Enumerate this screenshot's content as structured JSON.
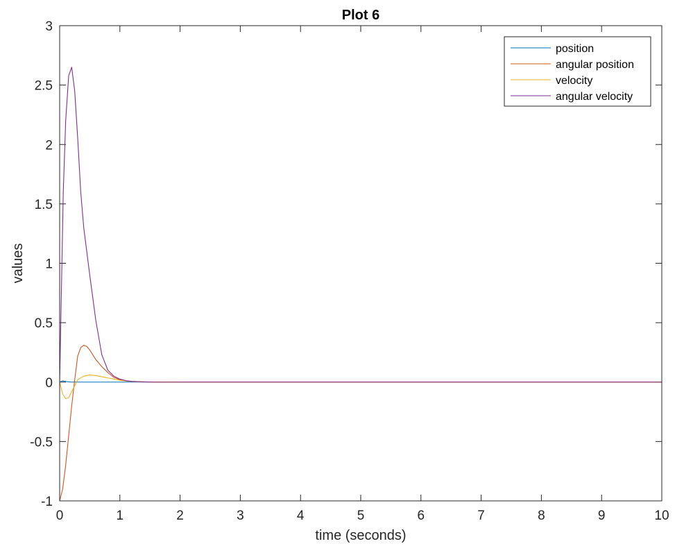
{
  "chart_data": {
    "type": "line",
    "title": "Plot 6",
    "xlabel": "time (seconds)",
    "ylabel": "values",
    "xlim": [
      0,
      10
    ],
    "ylim": [
      -1,
      3
    ],
    "xticks": [
      0,
      1,
      2,
      3,
      4,
      5,
      6,
      7,
      8,
      9,
      10
    ],
    "yticks": [
      -1,
      -0.5,
      0,
      0.5,
      1,
      1.5,
      2,
      2.5,
      3
    ],
    "grid": false,
    "legend_position": "top-right",
    "series": [
      {
        "name": "position",
        "color": "#0072BD",
        "x": [
          0,
          0.05,
          0.1,
          0.15,
          0.2,
          0.3,
          0.5,
          1.0,
          2,
          10
        ],
        "y": [
          0,
          0.01,
          0.005,
          0.002,
          0,
          0,
          0,
          0,
          0,
          0
        ]
      },
      {
        "name": "angular position",
        "color": "#D95319",
        "x": [
          0,
          0.05,
          0.1,
          0.15,
          0.2,
          0.25,
          0.3,
          0.35,
          0.4,
          0.45,
          0.5,
          0.6,
          0.7,
          0.8,
          0.9,
          1.0,
          1.1,
          1.2,
          1.4,
          1.6,
          2,
          10
        ],
        "y": [
          -1,
          -0.9,
          -0.7,
          -0.45,
          -0.2,
          0.02,
          0.22,
          0.29,
          0.31,
          0.3,
          0.27,
          0.19,
          0.13,
          0.08,
          0.04,
          0.02,
          0.01,
          0.005,
          0.002,
          0,
          0,
          0
        ]
      },
      {
        "name": "velocity",
        "color": "#EDB120",
        "x": [
          0,
          0.05,
          0.1,
          0.15,
          0.2,
          0.3,
          0.4,
          0.5,
          0.6,
          0.7,
          0.8,
          0.9,
          1.0,
          1.1,
          1.2,
          1.4,
          2,
          10
        ],
        "y": [
          0,
          -0.1,
          -0.14,
          -0.13,
          -0.08,
          0.02,
          0.05,
          0.06,
          0.055,
          0.045,
          0.035,
          0.025,
          0.015,
          0.01,
          0.005,
          0.001,
          0,
          0
        ]
      },
      {
        "name": "angular velocity",
        "color": "#7E2F8E",
        "x": [
          0,
          0.03,
          0.06,
          0.1,
          0.15,
          0.2,
          0.25,
          0.3,
          0.35,
          0.4,
          0.5,
          0.6,
          0.7,
          0.8,
          0.9,
          1.0,
          1.1,
          1.2,
          1.4,
          1.6,
          2,
          10
        ],
        "y": [
          0,
          0.8,
          1.6,
          2.2,
          2.58,
          2.65,
          2.45,
          2.05,
          1.6,
          1.3,
          0.9,
          0.52,
          0.23,
          0.1,
          0.05,
          0.025,
          0.012,
          0.006,
          0.002,
          0,
          0,
          0
        ]
      }
    ]
  }
}
